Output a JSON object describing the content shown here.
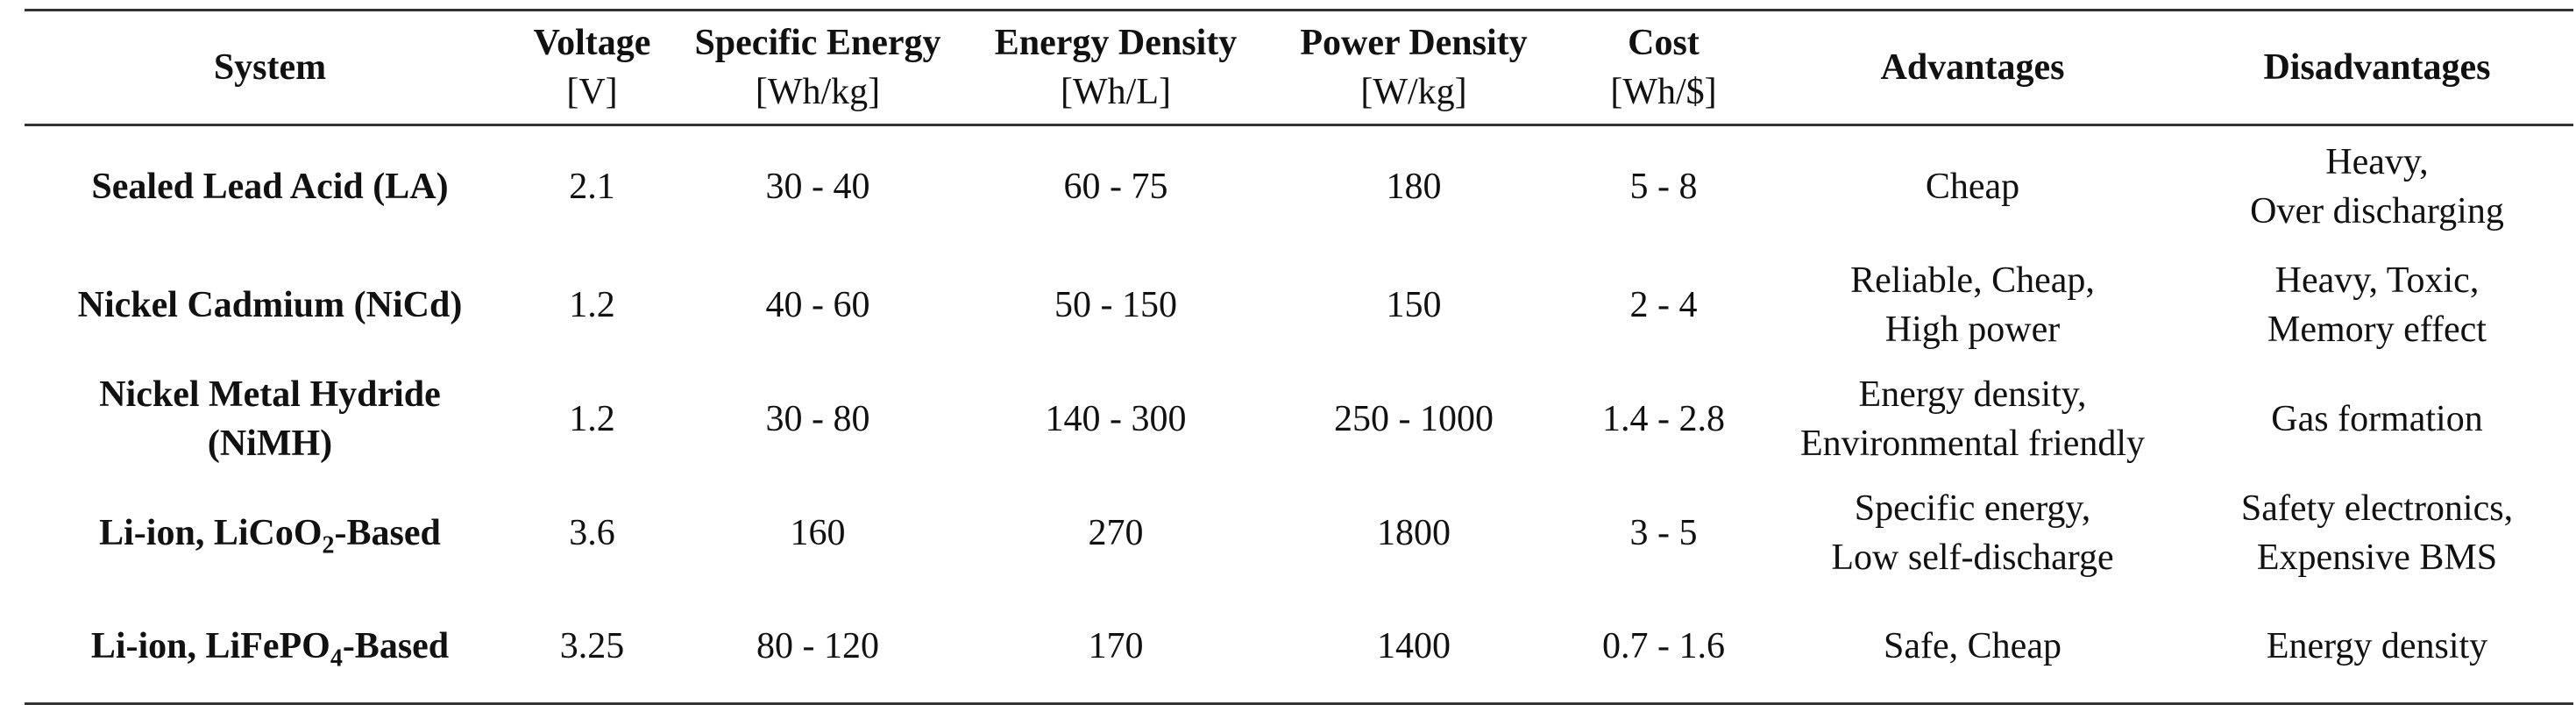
{
  "headers": [
    {
      "title": "System",
      "unit": ""
    },
    {
      "title": "Voltage",
      "unit": "[V]"
    },
    {
      "title": "Specific Energy",
      "unit": "[Wh/kg]"
    },
    {
      "title": "Energy Density",
      "unit": "[Wh/L]"
    },
    {
      "title": "Power Density",
      "unit": "[W/kg]"
    },
    {
      "title": "Cost",
      "unit": "[Wh/$]"
    },
    {
      "title": "Advantages",
      "unit": ""
    },
    {
      "title": "Disadvantages",
      "unit": ""
    }
  ],
  "rows": [
    {
      "system": {
        "a": "Sealed Lead Acid (LA)",
        "sub": "",
        "b": ""
      },
      "voltage": "2.1",
      "specific_energy": "30 - 40",
      "energy_density": "60 - 75",
      "power_density": "180",
      "cost": "5 - 8",
      "advantages": [
        "Cheap"
      ],
      "disadvantages": [
        "Heavy,",
        "Over discharging"
      ]
    },
    {
      "system": {
        "a": "Nickel Cadmium (NiCd)",
        "sub": "",
        "b": ""
      },
      "voltage": "1.2",
      "specific_energy": "40 - 60",
      "energy_density": "50 - 150",
      "power_density": "150",
      "cost": "2 - 4",
      "advantages": [
        "Reliable, Cheap,",
        "High power"
      ],
      "disadvantages": [
        "Heavy, Toxic,",
        "Memory effect"
      ]
    },
    {
      "system": {
        "a": "Nickel Metal Hydride",
        "sub": "",
        "b": "(NiMH)"
      },
      "voltage": "1.2",
      "specific_energy": "30 - 80",
      "energy_density": "140 - 300",
      "power_density": "250 - 1000",
      "cost": "1.4 - 2.8",
      "advantages": [
        "Energy density,",
        "Environmental friendly"
      ],
      "disadvantages": [
        "Gas formation"
      ]
    },
    {
      "system": {
        "a": "Li-ion, LiCoO",
        "sub": "2",
        "b": "-Based"
      },
      "voltage": "3.6",
      "specific_energy": "160",
      "energy_density": "270",
      "power_density": "1800",
      "cost": "3 - 5",
      "advantages": [
        "Specific energy,",
        "Low self-discharge"
      ],
      "disadvantages": [
        "Safety electronics,",
        "Expensive BMS"
      ]
    },
    {
      "system": {
        "a": "Li-ion, LiFePO",
        "sub": "4",
        "b": "-Based"
      },
      "voltage": "3.25",
      "specific_energy": "80 - 120",
      "energy_density": "170",
      "power_density": "1400",
      "cost": "0.7 - 1.6",
      "advantages": [
        "Safe, Cheap"
      ],
      "disadvantages": [
        "Energy density"
      ]
    }
  ]
}
